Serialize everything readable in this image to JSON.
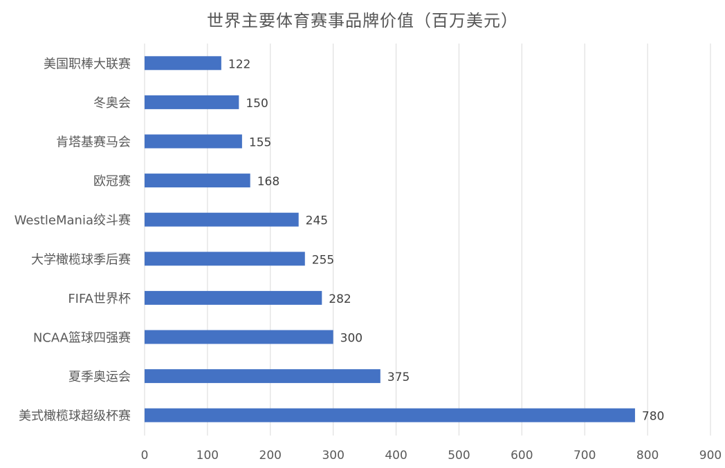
{
  "chart_data": {
    "type": "bar",
    "orientation": "horizontal",
    "title": "世界主要体育赛事品牌价值（百万美元）",
    "categories": [
      "美国职棒大联赛",
      "冬奥会",
      "肯塔基赛马会",
      "欧冠赛",
      "WestleMania绞斗赛",
      "大学橄榄球季后赛",
      "FIFA世界杯",
      "NCAA篮球四强赛",
      "夏季奥运会",
      "美式橄榄球超级杯赛"
    ],
    "values": [
      122,
      150,
      155,
      168,
      245,
      255,
      282,
      300,
      375,
      780
    ],
    "xlim": [
      0,
      900
    ],
    "x_ticks": [
      0,
      100,
      200,
      300,
      400,
      500,
      600,
      700,
      800,
      900
    ],
    "xlabel": "",
    "ylabel": "",
    "grid": true,
    "data_labels": true,
    "bar_color": "#4472C4",
    "grid_color": "#D9D9D9",
    "text_color": "#595959",
    "legend": "none"
  }
}
